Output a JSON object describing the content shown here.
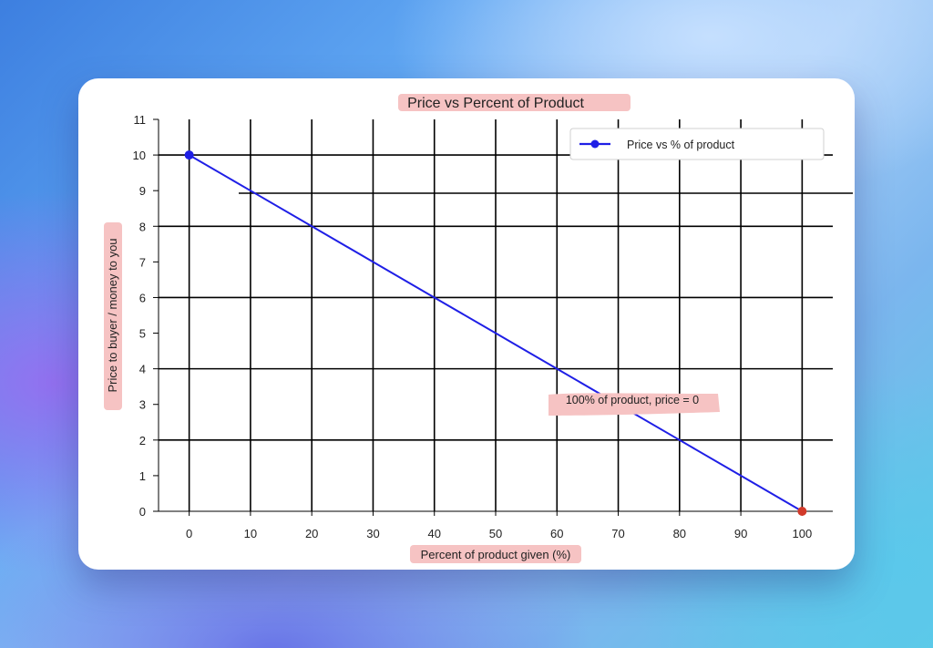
{
  "chart_data": {
    "type": "line",
    "title": "Price vs Percent of Product",
    "xlabel": "Percent of product given (%)",
    "ylabel": "Price to buyer / money to you",
    "x_ticks": [
      "0",
      "10",
      "20",
      "30",
      "40",
      "50",
      "60",
      "70",
      "80",
      "90",
      "100"
    ],
    "y_ticks": [
      "0",
      "1",
      "2",
      "3",
      "4",
      "5",
      "6",
      "7",
      "8",
      "9",
      "10",
      "11"
    ],
    "xlim": [
      -5,
      105
    ],
    "ylim": [
      0,
      11
    ],
    "grid": true,
    "legend_position": "top-right",
    "series": [
      {
        "name": "Price vs % of product",
        "color": "#1f1fe6",
        "x": [
          0,
          10,
          20,
          30,
          40,
          50,
          60,
          70,
          80,
          90,
          100
        ],
        "y": [
          10,
          9,
          8,
          7,
          6,
          5,
          4,
          3,
          2,
          1,
          0
        ]
      }
    ],
    "highlight_points": [
      {
        "x": 0,
        "y": 10,
        "color": "#1f1fe6"
      },
      {
        "x": 100,
        "y": 0,
        "color": "#d23a2a"
      }
    ],
    "annotations": [
      {
        "text": "100% of product, price = 0",
        "x": 69.5,
        "y": 3
      }
    ]
  }
}
